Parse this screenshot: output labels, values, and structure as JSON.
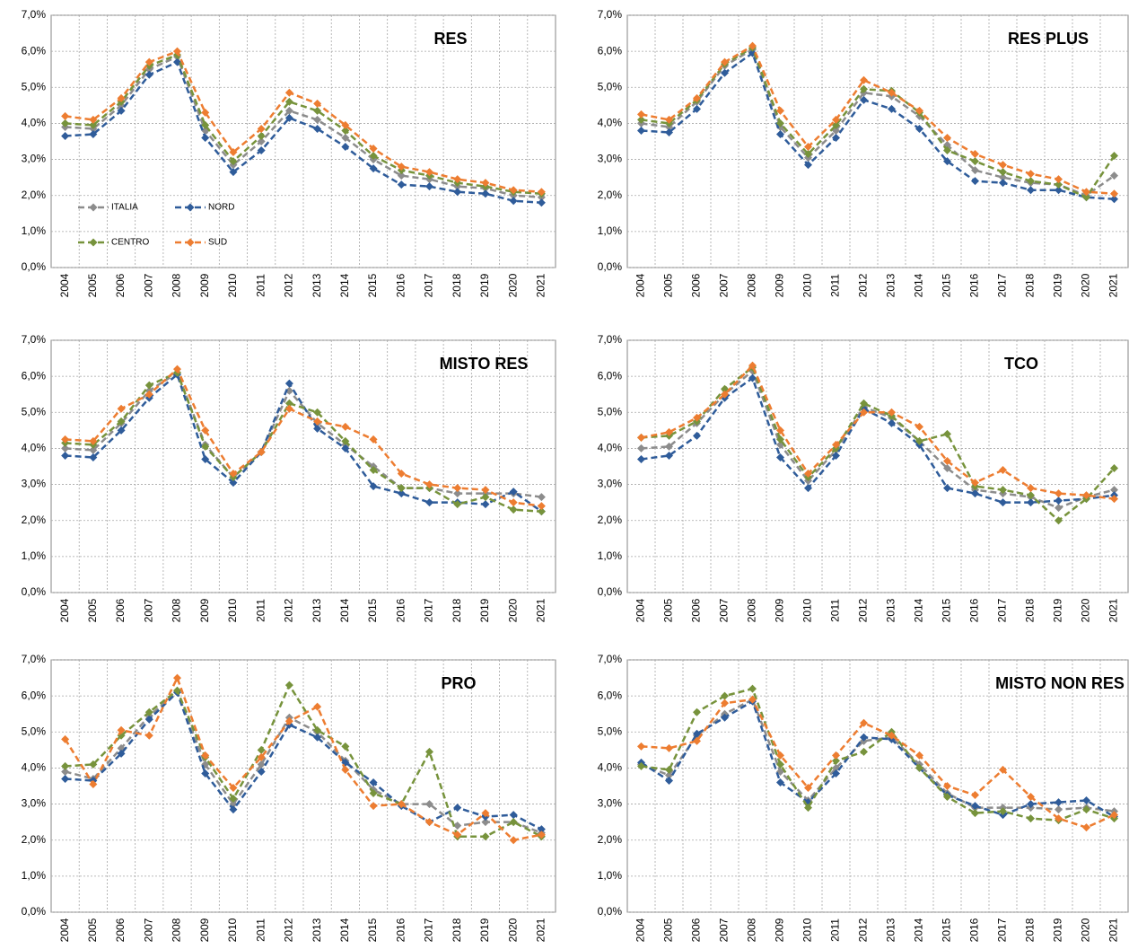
{
  "chart_data": [
    {
      "type": "line",
      "title": "RES",
      "legend": "lower-left",
      "categories": [
        "2004",
        "2005",
        "2006",
        "2007",
        "2008",
        "2009",
        "2010",
        "2011",
        "2012",
        "2013",
        "2014",
        "2015",
        "2016",
        "2017",
        "2018",
        "2019",
        "2020",
        "2021"
      ],
      "ylim": [
        0,
        7
      ],
      "yticks": [
        {
          "value": 0,
          "label": "0,0%"
        },
        {
          "value": 1,
          "label": "1,0%"
        },
        {
          "value": 2,
          "label": "2,0%"
        },
        {
          "value": 3,
          "label": "3,0%"
        },
        {
          "value": 4,
          "label": "4,0%"
        },
        {
          "value": 5,
          "label": "5,0%"
        },
        {
          "value": 6,
          "label": "6,0%"
        },
        {
          "value": 7,
          "label": "7,0%"
        }
      ],
      "grid": true,
      "series": [
        {
          "name": "ITALIA",
          "color": "#8c8c8c",
          "values": [
            3.9,
            3.85,
            4.5,
            5.5,
            5.85,
            3.8,
            2.85,
            3.5,
            4.35,
            4.1,
            3.6,
            3.0,
            2.55,
            2.45,
            2.25,
            2.2,
            2.0,
            1.95
          ]
        },
        {
          "name": "NORD",
          "color": "#2f5c9a",
          "values": [
            3.65,
            3.7,
            4.35,
            5.35,
            5.7,
            3.6,
            2.65,
            3.25,
            4.15,
            3.85,
            3.35,
            2.75,
            2.3,
            2.25,
            2.1,
            2.05,
            1.85,
            1.8
          ]
        },
        {
          "name": "CENTRO",
          "color": "#77933c",
          "values": [
            4.0,
            3.95,
            4.6,
            5.6,
            5.9,
            3.95,
            2.95,
            3.65,
            4.6,
            4.35,
            3.8,
            3.1,
            2.7,
            2.55,
            2.35,
            2.25,
            2.1,
            2.05
          ]
        },
        {
          "name": "SUD",
          "color": "#ed7d31",
          "values": [
            4.2,
            4.1,
            4.7,
            5.7,
            6.0,
            4.3,
            3.2,
            3.85,
            4.85,
            4.55,
            3.95,
            3.3,
            2.8,
            2.65,
            2.45,
            2.35,
            2.15,
            2.1
          ]
        }
      ]
    },
    {
      "type": "line",
      "title": "RES PLUS",
      "categories": [
        "2004",
        "2005",
        "2006",
        "2007",
        "2008",
        "2009",
        "2010",
        "2011",
        "2012",
        "2013",
        "2014",
        "2015",
        "2016",
        "2017",
        "2018",
        "2019",
        "2020",
        "2021"
      ],
      "ylim": [
        0,
        7
      ],
      "yticks": [
        {
          "value": 0,
          "label": "0,0%"
        },
        {
          "value": 1,
          "label": "1,0%"
        },
        {
          "value": 2,
          "label": "2,0%"
        },
        {
          "value": 3,
          "label": "3,0%"
        },
        {
          "value": 4,
          "label": "4,0%"
        },
        {
          "value": 5,
          "label": "5,0%"
        },
        {
          "value": 6,
          "label": "6,0%"
        },
        {
          "value": 7,
          "label": "7,0%"
        }
      ],
      "grid": true,
      "series": [
        {
          "name": "ITALIA",
          "color": "#8c8c8c",
          "values": [
            4.0,
            3.9,
            4.6,
            5.6,
            6.05,
            3.9,
            3.05,
            3.8,
            4.85,
            4.75,
            4.2,
            3.4,
            2.7,
            2.5,
            2.35,
            2.3,
            2.0,
            2.55
          ]
        },
        {
          "name": "NORD",
          "color": "#2f5c9a",
          "values": [
            3.8,
            3.75,
            4.4,
            5.4,
            5.95,
            3.7,
            2.85,
            3.6,
            4.65,
            4.4,
            3.85,
            2.95,
            2.4,
            2.35,
            2.15,
            2.15,
            1.95,
            1.9
          ]
        },
        {
          "name": "CENTRO",
          "color": "#77933c",
          "values": [
            4.1,
            4.0,
            4.65,
            5.65,
            6.1,
            4.0,
            3.15,
            3.95,
            4.95,
            4.9,
            4.3,
            3.25,
            2.95,
            2.65,
            2.4,
            2.3,
            1.95,
            3.1
          ]
        },
        {
          "name": "SUD",
          "color": "#ed7d31",
          "values": [
            4.25,
            4.1,
            4.7,
            5.7,
            6.15,
            4.35,
            3.35,
            4.1,
            5.2,
            4.85,
            4.35,
            3.6,
            3.15,
            2.85,
            2.6,
            2.45,
            2.1,
            2.05
          ]
        }
      ]
    },
    {
      "type": "line",
      "title": "MISTO RES",
      "categories": [
        "2004",
        "2005",
        "2006",
        "2007",
        "2008",
        "2009",
        "2010",
        "2011",
        "2012",
        "2013",
        "2014",
        "2015",
        "2016",
        "2017",
        "2018",
        "2019",
        "2020",
        "2021"
      ],
      "ylim": [
        0,
        7
      ],
      "yticks": [
        {
          "value": 0,
          "label": "0,0%"
        },
        {
          "value": 1,
          "label": "1,0%"
        },
        {
          "value": 2,
          "label": "2,0%"
        },
        {
          "value": 3,
          "label": "3,0%"
        },
        {
          "value": 4,
          "label": "4,0%"
        },
        {
          "value": 5,
          "label": "5,0%"
        },
        {
          "value": 6,
          "label": "6,0%"
        },
        {
          "value": 7,
          "label": "7,0%"
        }
      ],
      "grid": true,
      "series": [
        {
          "name": "ITALIA",
          "color": "#8c8c8c",
          "values": [
            4.0,
            3.95,
            4.7,
            5.6,
            6.1,
            4.1,
            3.2,
            3.9,
            5.6,
            4.7,
            4.1,
            3.5,
            2.9,
            2.9,
            2.75,
            2.75,
            2.75,
            2.65
          ]
        },
        {
          "name": "NORD",
          "color": "#2f5c9a",
          "values": [
            3.8,
            3.75,
            4.5,
            5.4,
            6.05,
            3.7,
            3.05,
            3.9,
            5.8,
            4.55,
            4.0,
            2.95,
            2.75,
            2.5,
            2.5,
            2.45,
            2.8,
            2.25
          ]
        },
        {
          "name": "CENTRO",
          "color": "#77933c",
          "values": [
            4.15,
            4.1,
            4.75,
            5.75,
            6.1,
            4.05,
            3.2,
            3.9,
            5.25,
            5.0,
            4.2,
            3.4,
            2.9,
            2.9,
            2.45,
            2.65,
            2.3,
            2.25
          ]
        },
        {
          "name": "SUD",
          "color": "#ed7d31",
          "values": [
            4.25,
            4.2,
            5.1,
            5.5,
            6.2,
            4.5,
            3.3,
            3.9,
            5.1,
            4.75,
            4.6,
            4.25,
            3.3,
            3.0,
            2.9,
            2.85,
            2.5,
            2.4
          ]
        }
      ]
    },
    {
      "type": "line",
      "title": "TCO",
      "categories": [
        "2004",
        "2005",
        "2006",
        "2007",
        "2008",
        "2009",
        "2010",
        "2011",
        "2012",
        "2013",
        "2014",
        "2015",
        "2016",
        "2017",
        "2018",
        "2019",
        "2020",
        "2021"
      ],
      "ylim": [
        0,
        7
      ],
      "yticks": [
        {
          "value": 0,
          "label": "0,0%"
        },
        {
          "value": 1,
          "label": "1,0%"
        },
        {
          "value": 2,
          "label": "2,0%"
        },
        {
          "value": 3,
          "label": "3,0%"
        },
        {
          "value": 4,
          "label": "4,0%"
        },
        {
          "value": 5,
          "label": "5,0%"
        },
        {
          "value": 6,
          "label": "6,0%"
        },
        {
          "value": 7,
          "label": "7,0%"
        }
      ],
      "grid": true,
      "series": [
        {
          "name": "ITALIA",
          "color": "#8c8c8c",
          "values": [
            4.0,
            4.05,
            4.7,
            5.5,
            6.15,
            4.1,
            3.1,
            3.95,
            5.15,
            4.85,
            4.2,
            3.45,
            2.85,
            2.75,
            2.65,
            2.35,
            2.65,
            2.85
          ]
        },
        {
          "name": "NORD",
          "color": "#2f5c9a",
          "values": [
            3.7,
            3.8,
            4.35,
            5.4,
            5.95,
            3.75,
            2.9,
            3.8,
            5.1,
            4.7,
            4.1,
            2.9,
            2.75,
            2.5,
            2.5,
            2.55,
            2.6,
            2.7
          ]
        },
        {
          "name": "CENTRO",
          "color": "#77933c",
          "values": [
            4.3,
            4.35,
            4.75,
            5.65,
            6.25,
            4.25,
            3.2,
            4.0,
            5.25,
            4.9,
            4.2,
            4.4,
            2.95,
            2.85,
            2.7,
            2.0,
            2.6,
            3.45
          ]
        },
        {
          "name": "SUD",
          "color": "#ed7d31",
          "values": [
            4.3,
            4.45,
            4.85,
            5.5,
            6.3,
            4.5,
            3.3,
            4.1,
            5.0,
            5.0,
            4.6,
            3.65,
            3.05,
            3.4,
            2.9,
            2.75,
            2.7,
            2.6
          ]
        }
      ]
    },
    {
      "type": "line",
      "title": "PRO",
      "categories": [
        "2004",
        "2005",
        "2006",
        "2007",
        "2008",
        "2009",
        "2010",
        "2011",
        "2012",
        "2013",
        "2014",
        "2015",
        "2016",
        "2017",
        "2018",
        "2019",
        "2020",
        "2021"
      ],
      "ylim": [
        0,
        7
      ],
      "yticks": [
        {
          "value": 0,
          "label": "0,0%"
        },
        {
          "value": 1,
          "label": "1,0%"
        },
        {
          "value": 2,
          "label": "2,0%"
        },
        {
          "value": 3,
          "label": "3,0%"
        },
        {
          "value": 4,
          "label": "4,0%"
        },
        {
          "value": 5,
          "label": "5,0%"
        },
        {
          "value": 6,
          "label": "6,0%"
        },
        {
          "value": 7,
          "label": "7,0%"
        }
      ],
      "grid": true,
      "series": [
        {
          "name": "ITALIA",
          "color": "#8c8c8c",
          "values": [
            3.9,
            3.7,
            4.55,
            5.45,
            6.1,
            4.1,
            3.0,
            4.1,
            5.4,
            5.0,
            4.2,
            3.4,
            3.0,
            3.0,
            2.4,
            2.5,
            2.5,
            2.2
          ]
        },
        {
          "name": "NORD",
          "color": "#2f5c9a",
          "values": [
            3.7,
            3.65,
            4.4,
            5.35,
            6.1,
            3.85,
            2.85,
            3.9,
            5.2,
            4.85,
            4.15,
            3.6,
            2.95,
            2.5,
            2.9,
            2.65,
            2.7,
            2.3
          ]
        },
        {
          "name": "CENTRO",
          "color": "#77933c",
          "values": [
            4.05,
            4.1,
            4.9,
            5.55,
            6.15,
            4.3,
            3.15,
            4.5,
            6.3,
            5.05,
            4.6,
            3.3,
            3.0,
            4.45,
            2.1,
            2.1,
            2.5,
            2.1
          ]
        },
        {
          "name": "SUD",
          "color": "#ed7d31",
          "values": [
            4.8,
            3.55,
            5.05,
            4.9,
            6.5,
            4.35,
            3.45,
            4.3,
            5.3,
            5.7,
            3.95,
            2.95,
            3.0,
            2.5,
            2.15,
            2.75,
            2.0,
            2.15
          ]
        }
      ]
    },
    {
      "type": "line",
      "title": "MISTO NON RES",
      "categories": [
        "2004",
        "2005",
        "2006",
        "2007",
        "2008",
        "2009",
        "2010",
        "2011",
        "2012",
        "2013",
        "2014",
        "2015",
        "2016",
        "2017",
        "2018",
        "2019",
        "2020",
        "2021"
      ],
      "ylim": [
        0,
        7
      ],
      "yticks": [
        {
          "value": 0,
          "label": "0,0%"
        },
        {
          "value": 1,
          "label": "1,0%"
        },
        {
          "value": 2,
          "label": "2,0%"
        },
        {
          "value": 3,
          "label": "3,0%"
        },
        {
          "value": 4,
          "label": "4,0%"
        },
        {
          "value": 5,
          "label": "5,0%"
        },
        {
          "value": 6,
          "label": "6,0%"
        },
        {
          "value": 7,
          "label": "7,0%"
        }
      ],
      "grid": true,
      "series": [
        {
          "name": "ITALIA",
          "color": "#8c8c8c",
          "values": [
            4.1,
            3.8,
            4.9,
            5.5,
            5.9,
            3.9,
            3.1,
            4.0,
            4.75,
            4.85,
            4.1,
            3.3,
            2.9,
            2.9,
            2.9,
            2.85,
            2.9,
            2.8
          ]
        },
        {
          "name": "NORD",
          "color": "#2f5c9a",
          "values": [
            4.15,
            3.65,
            4.95,
            5.4,
            5.85,
            3.6,
            3.05,
            3.85,
            4.85,
            4.8,
            4.0,
            3.25,
            2.95,
            2.7,
            3.0,
            3.05,
            3.1,
            2.65
          ]
        },
        {
          "name": "CENTRO",
          "color": "#77933c",
          "values": [
            4.05,
            3.95,
            5.55,
            6.0,
            6.2,
            4.1,
            2.9,
            4.2,
            4.45,
            5.0,
            4.0,
            3.2,
            2.75,
            2.8,
            2.6,
            2.55,
            2.85,
            2.6
          ]
        },
        {
          "name": "SUD",
          "color": "#ed7d31",
          "values": [
            4.6,
            4.55,
            4.75,
            5.8,
            5.9,
            4.35,
            3.45,
            4.35,
            5.25,
            4.9,
            4.35,
            3.5,
            3.25,
            3.95,
            3.2,
            2.6,
            2.35,
            2.7
          ]
        }
      ]
    }
  ]
}
